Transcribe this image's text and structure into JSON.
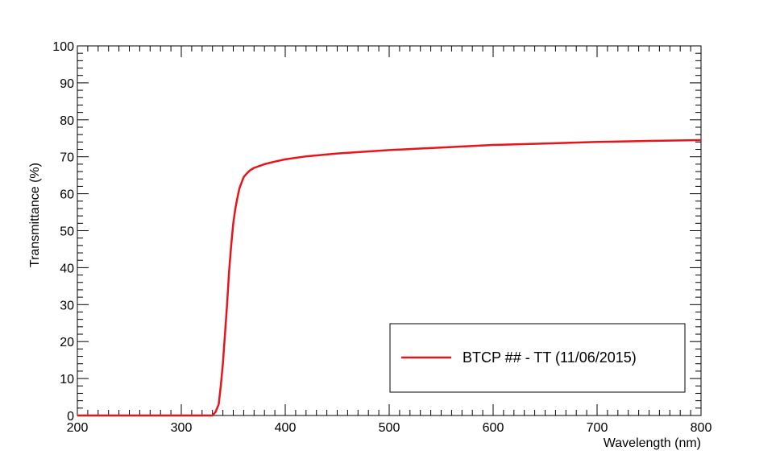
{
  "chart_data": {
    "type": "line",
    "xlabel": "Wavelength (nm)",
    "ylabel": "Transmittance (%)",
    "xlim": [
      200,
      800
    ],
    "ylim": [
      0,
      100
    ],
    "x_ticks": [
      200,
      300,
      400,
      500,
      600,
      700,
      800
    ],
    "y_ticks": [
      0,
      10,
      20,
      30,
      40,
      50,
      60,
      70,
      80,
      90,
      100
    ],
    "grid": false,
    "legend_position": "bottom-right",
    "series": [
      {
        "name": "BTCP ## - TT (11/06/2015)",
        "color": "#e8141b",
        "x": [
          200,
          250,
          300,
          330,
          333,
          336,
          338,
          340,
          342,
          344,
          346,
          348,
          350,
          352,
          354,
          356,
          358,
          360,
          363,
          366,
          370,
          375,
          380,
          390,
          400,
          420,
          450,
          500,
          550,
          600,
          650,
          700,
          750,
          800
        ],
        "y": [
          0,
          0,
          0,
          0,
          1,
          3,
          8,
          14,
          22,
          30,
          39,
          46,
          52,
          56,
          59,
          61.5,
          63,
          64.5,
          65.5,
          66.3,
          67,
          67.5,
          68,
          68.7,
          69.3,
          70.1,
          70.9,
          71.8,
          72.5,
          73.2,
          73.6,
          74,
          74.3,
          74.5
        ]
      }
    ]
  }
}
